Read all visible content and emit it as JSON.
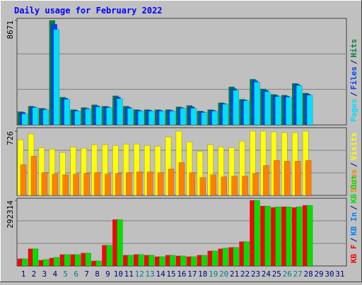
{
  "title": "Daily usage for February 2022",
  "chart_data": [
    {
      "type": "bar",
      "ylim": [
        0,
        8671
      ],
      "yticks": [
        8671
      ],
      "separator": "/",
      "legend_reversed": true,
      "series": [
        {
          "name": "Hits",
          "color": "#008040",
          "values": [
            1091,
            1550,
            1378,
            8671,
            2296,
            1263,
            1435,
            1665,
            1550,
            2411,
            1550,
            1263,
            1263,
            1263,
            1263,
            1493,
            1608,
            1148,
            1263,
            1837,
            3158,
            2124,
            3789,
            2985,
            2526,
            2469,
            3444,
            2641,
            null,
            null,
            null
          ]
        },
        {
          "name": "Files",
          "color": "#0040ff",
          "values": [
            1030,
            1490,
            1320,
            8350,
            2210,
            1210,
            1380,
            1580,
            1490,
            2300,
            1470,
            1210,
            1210,
            1210,
            1210,
            1430,
            1500,
            1090,
            1210,
            1780,
            3010,
            2060,
            3670,
            2870,
            2440,
            2380,
            3360,
            2550,
            null,
            null,
            null
          ]
        },
        {
          "name": "Pages",
          "color": "#00e0ff",
          "values": [
            919,
            1435,
            1263,
            7923,
            2124,
            1148,
            1320,
            1493,
            1435,
            2181,
            1378,
            1148,
            1148,
            1148,
            1148,
            1378,
            1378,
            1033,
            1148,
            1722,
            2870,
            2009,
            3559,
            2755,
            2354,
            2296,
            3272,
            2469,
            null,
            null,
            null
          ]
        }
      ]
    },
    {
      "type": "bar",
      "ylim": [
        0,
        726
      ],
      "yticks": [
        726
      ],
      "separator": "/",
      "legend_reversed": true,
      "series": [
        {
          "name": "Visits",
          "color": "#ffff00",
          "values": [
            629,
            694,
            541,
            525,
            484,
            549,
            533,
            573,
            573,
            565,
            581,
            581,
            565,
            557,
            662,
            726,
            605,
            500,
            573,
            549,
            541,
            613,
            726,
            726,
            718,
            710,
            710,
            726,
            null,
            null,
            null
          ]
        },
        {
          "name": "Sites",
          "color": "#ff8000",
          "values": [
            347,
            444,
            258,
            242,
            234,
            242,
            250,
            258,
            242,
            250,
            258,
            266,
            266,
            258,
            299,
            371,
            258,
            202,
            234,
            210,
            218,
            218,
            250,
            339,
            395,
            387,
            387,
            395,
            null,
            null,
            null
          ]
        }
      ]
    },
    {
      "type": "bar",
      "ylim": [
        0,
        292314
      ],
      "yticks": [
        292314
      ],
      "separator": "/",
      "legend_reversed": false,
      "categories": [
        "1",
        "2",
        "3",
        "4",
        "5",
        "6",
        "7",
        "8",
        "9",
        "10",
        "11",
        "12",
        "13",
        "14",
        "15",
        "16",
        "17",
        "18",
        "19",
        "20",
        "21",
        "22",
        "23",
        "24",
        "25",
        "26",
        "27",
        "28",
        "29",
        "30",
        "31"
      ],
      "category_colors": [
        "#000080",
        "#000080",
        "#000080",
        "#000080",
        "#008080",
        "#008080",
        "#000080",
        "#000080",
        "#000080",
        "#000080",
        "#000080",
        "#008080",
        "#008080",
        "#000080",
        "#000080",
        "#000080",
        "#000080",
        "#000080",
        "#008080",
        "#008080",
        "#000080",
        "#000080",
        "#000080",
        "#000080",
        "#000080",
        "#008080",
        "#008080",
        "#000080",
        "#000080",
        "#000080",
        "#000080"
      ],
      "series": [
        {
          "name": "KB F",
          "color": "#ff0000",
          "values": [
            31770,
            76250,
            25416,
            34947,
            50832,
            50832,
            57186,
            22239,
            92133,
            206505,
            47655,
            50832,
            47655,
            41301,
            47655,
            44478,
            41301,
            47655,
            66717,
            76250,
            82602,
            108018,
            292314,
            266868,
            260514,
            263691,
            260514,
            270045,
            null,
            null,
            null
          ]
        },
        {
          "name": "KB In",
          "color": "#0080ff",
          "values": [
            0,
            0,
            0,
            0,
            0,
            0,
            0,
            0,
            0,
            0,
            0,
            0,
            0,
            0,
            0,
            0,
            0,
            0,
            0,
            0,
            0,
            0,
            0,
            0,
            0,
            0,
            0,
            0,
            null,
            null,
            null
          ]
        },
        {
          "name": "KB Out",
          "color": "#00e000",
          "values": [
            31770,
            76250,
            28593,
            38124,
            50832,
            50832,
            57186,
            22239,
            92133,
            206505,
            47655,
            50832,
            47655,
            41301,
            47655,
            44478,
            41301,
            47655,
            66717,
            79425,
            82602,
            108018,
            292314,
            266868,
            263691,
            263691,
            263691,
            270045,
            null,
            null,
            null
          ]
        }
      ]
    }
  ]
}
